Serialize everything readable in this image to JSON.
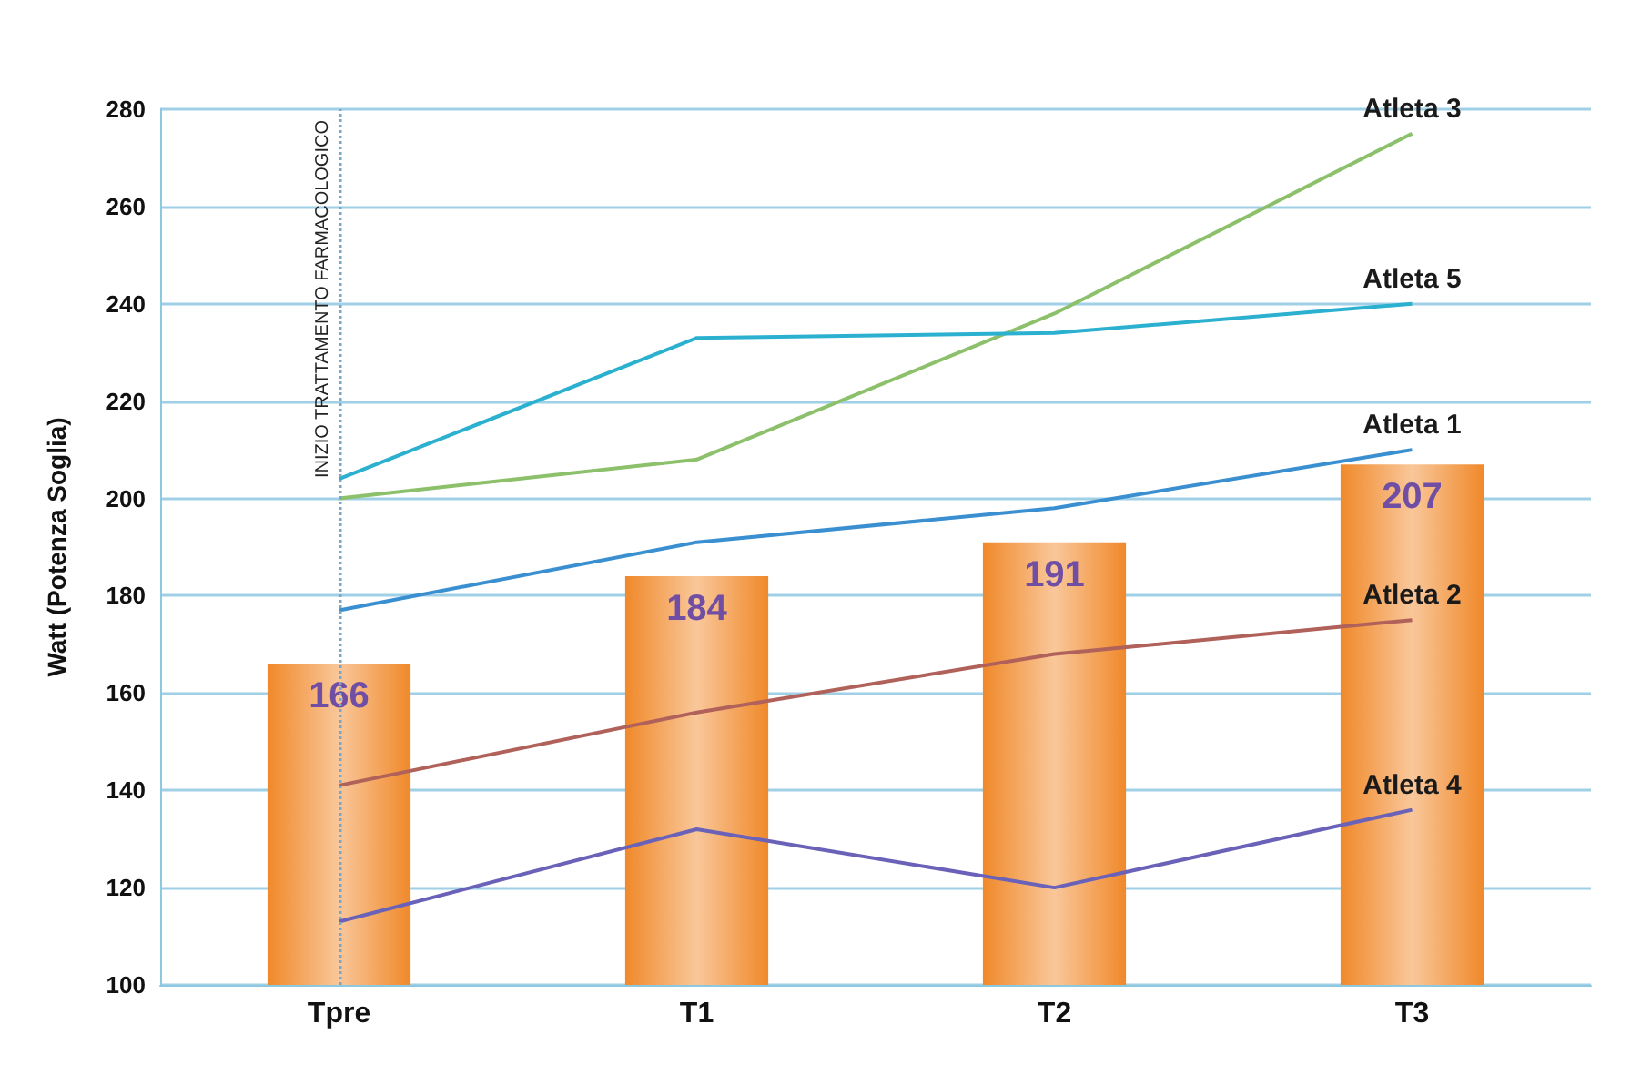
{
  "chart_data": {
    "type": "bar",
    "ylabel": "Watt (Potenza Soglia)",
    "categories": [
      "Tpre",
      "T1",
      "T2",
      "T3"
    ],
    "series": [
      {
        "color": "#f0892a",
        "values": [
          166,
          184,
          191,
          207
        ],
        "value_labels": [
          "166",
          "184",
          "191",
          "207"
        ]
      },
      {
        "type": "line",
        "name": "Atleta 3",
        "color": "#8cc06a",
        "values": [
          200,
          208,
          238,
          275
        ]
      },
      {
        "type": "line",
        "name": "Atleta 5",
        "color": "#2bb0d0",
        "values": [
          204,
          233,
          234,
          240
        ]
      },
      {
        "type": "line",
        "name": "Atleta 1",
        "color": "#3a8fd0",
        "values": [
          177,
          191,
          198,
          210
        ]
      },
      {
        "type": "line",
        "name": "Atleta 2",
        "color": "#b0615a",
        "values": [
          141,
          156,
          168,
          175
        ]
      },
      {
        "type": "line",
        "name": "Atleta 4",
        "color": "#6a62b8",
        "values": [
          113,
          132,
          120,
          136
        ]
      }
    ],
    "ylim": [
      100,
      280
    ],
    "yticks": [
      100,
      120,
      140,
      160,
      180,
      200,
      220,
      240,
      260,
      280
    ],
    "grid": "y",
    "legend": false,
    "ref_lines": [
      {
        "axis": "x",
        "value": "Tpre",
        "label": "INIZIO TRATTAMENTO FARMACOLOGICO",
        "color": "#7aa6c2",
        "line_style": "dotted"
      }
    ]
  }
}
